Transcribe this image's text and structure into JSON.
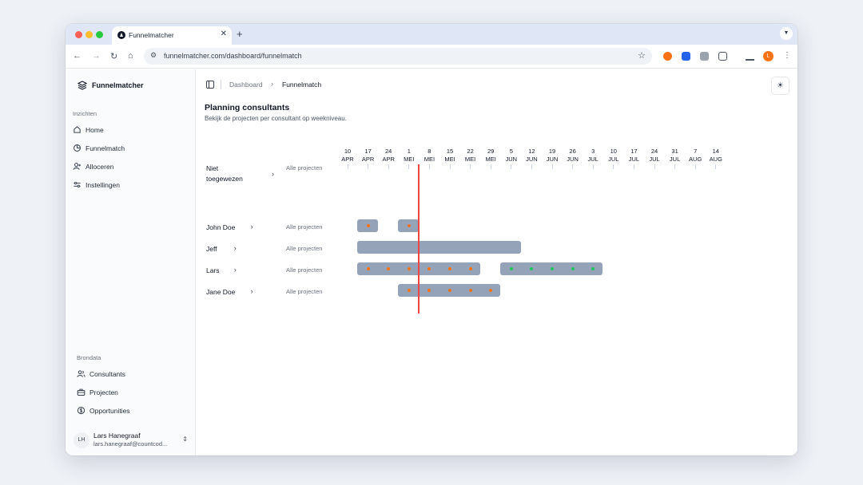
{
  "browser": {
    "tab_title": "Funnelmatcher",
    "url": "funnelmatcher.com/dashboard/funnelmatch",
    "profile_initial": "L"
  },
  "sidebar": {
    "brand": "Funnelmatcher",
    "groups": [
      {
        "label": "Inzichten",
        "items": [
          {
            "label": "Home",
            "icon": "home-icon"
          },
          {
            "label": "Funnelmatch",
            "icon": "pie-chart-icon"
          },
          {
            "label": "Alloceren",
            "icon": "user-plus-icon"
          },
          {
            "label": "Instellingen",
            "icon": "sliders-icon"
          }
        ]
      },
      {
        "label": "Brondata",
        "items": [
          {
            "label": "Consultants",
            "icon": "users-icon"
          },
          {
            "label": "Projecten",
            "icon": "briefcase-icon"
          },
          {
            "label": "Opportunities",
            "icon": "dollar-circle-icon"
          }
        ]
      }
    ],
    "user": {
      "initials": "LH",
      "name": "Lars Hanegraaf",
      "email": "lars.hanegraaf@countcod..."
    }
  },
  "header": {
    "breadcrumb": [
      "Dashboard",
      "Funnelmatch"
    ]
  },
  "page": {
    "title": "Planning consultants",
    "subtitle": "Bekijk de projecten per consultant op weekniveau."
  },
  "colors": {
    "bar": "#94a3b8",
    "dot_orange": "#f97316",
    "dot_green": "#22c55e",
    "today_line": "#ef4444"
  },
  "chart_data": {
    "type": "gantt",
    "weeks": [
      {
        "day": "10",
        "month": "APR"
      },
      {
        "day": "17",
        "month": "APR"
      },
      {
        "day": "24",
        "month": "APR"
      },
      {
        "day": "1",
        "month": "MEI"
      },
      {
        "day": "8",
        "month": "MEI"
      },
      {
        "day": "15",
        "month": "MEI"
      },
      {
        "day": "22",
        "month": "MEI"
      },
      {
        "day": "29",
        "month": "MEI"
      },
      {
        "day": "5",
        "month": "JUN"
      },
      {
        "day": "12",
        "month": "JUN"
      },
      {
        "day": "19",
        "month": "JUN"
      },
      {
        "day": "26",
        "month": "JUN"
      },
      {
        "day": "3",
        "month": "JUL"
      },
      {
        "day": "10",
        "month": "JUL"
      },
      {
        "day": "17",
        "month": "JUL"
      },
      {
        "day": "24",
        "month": "JUL"
      },
      {
        "day": "31",
        "month": "JUL"
      },
      {
        "day": "7",
        "month": "AUG"
      },
      {
        "day": "14",
        "month": "AUG"
      }
    ],
    "today_week": "1 MEI",
    "rows_link_label": "Alle projecten",
    "rows": [
      {
        "name": "Niet toegewezen",
        "bars": []
      },
      {
        "name": "John Doe",
        "bars": [
          {
            "start": "17 APR",
            "end": "17 APR",
            "dots": "orange"
          },
          {
            "start": "1 MEI",
            "end": "1 MEI",
            "dots": "orange"
          }
        ]
      },
      {
        "name": "Jeff",
        "bars": [
          {
            "start": "17 APR",
            "end": "5 JUN",
            "dots": "none"
          }
        ]
      },
      {
        "name": "Lars",
        "bars": [
          {
            "start": "17 APR",
            "end": "22 MEI",
            "dots": "orange"
          },
          {
            "start": "5 JUN",
            "end": "3 JUL",
            "dots": "green"
          }
        ]
      },
      {
        "name": "Jane Doe",
        "bars": [
          {
            "start": "1 MEI",
            "end": "29 MEI",
            "dots": "orange"
          }
        ]
      }
    ]
  }
}
